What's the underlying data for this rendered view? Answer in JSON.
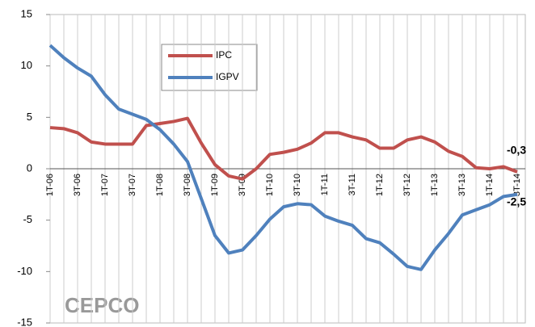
{
  "chart_data": {
    "type": "line",
    "categories": [
      "1T-06",
      null,
      "3T-06",
      null,
      "1T-07",
      null,
      "3T-07",
      null,
      "1T-08",
      null,
      "3T-08",
      null,
      "1T-09",
      null,
      "3T-09",
      null,
      "1T-10",
      null,
      "3T-10",
      null,
      "1T-11",
      null,
      "3T-11",
      null,
      "1T-12",
      null,
      "3T-12",
      null,
      "1T-13",
      null,
      "3T-13",
      null,
      "1T-14",
      null,
      "3T-14"
    ],
    "series": [
      {
        "name": "IPC",
        "color": "#c0504d",
        "values": [
          4.0,
          3.9,
          3.5,
          2.6,
          2.4,
          2.4,
          2.4,
          4.2,
          4.4,
          4.6,
          4.9,
          2.5,
          0.4,
          -0.7,
          -1.0,
          0.0,
          1.4,
          1.6,
          1.9,
          2.5,
          3.5,
          3.5,
          3.1,
          2.8,
          2.0,
          2.0,
          2.8,
          3.1,
          2.6,
          1.7,
          1.2,
          0.1,
          0.0,
          0.2,
          -0.3
        ],
        "end_label": "-0,3"
      },
      {
        "name": "IGPV",
        "color": "#4f81bd",
        "values": [
          12.0,
          10.8,
          9.8,
          9.0,
          7.2,
          5.8,
          5.3,
          4.8,
          3.8,
          2.4,
          0.7,
          -2.9,
          -6.5,
          -8.2,
          -7.9,
          -6.5,
          -4.9,
          -3.7,
          -3.4,
          -3.5,
          -4.6,
          -5.1,
          -5.5,
          -6.8,
          -7.2,
          -8.3,
          -9.5,
          -9.8,
          -7.9,
          -6.3,
          -4.5,
          -4.0,
          -3.5,
          -2.7,
          -2.5
        ],
        "end_label": "-2,5"
      }
    ],
    "ylim": [
      -15,
      15
    ],
    "yticks": [
      -15,
      -10,
      -5,
      0,
      5,
      10,
      15
    ],
    "grid": "vertical",
    "legend": "top-left",
    "watermark": "CEPCO"
  }
}
